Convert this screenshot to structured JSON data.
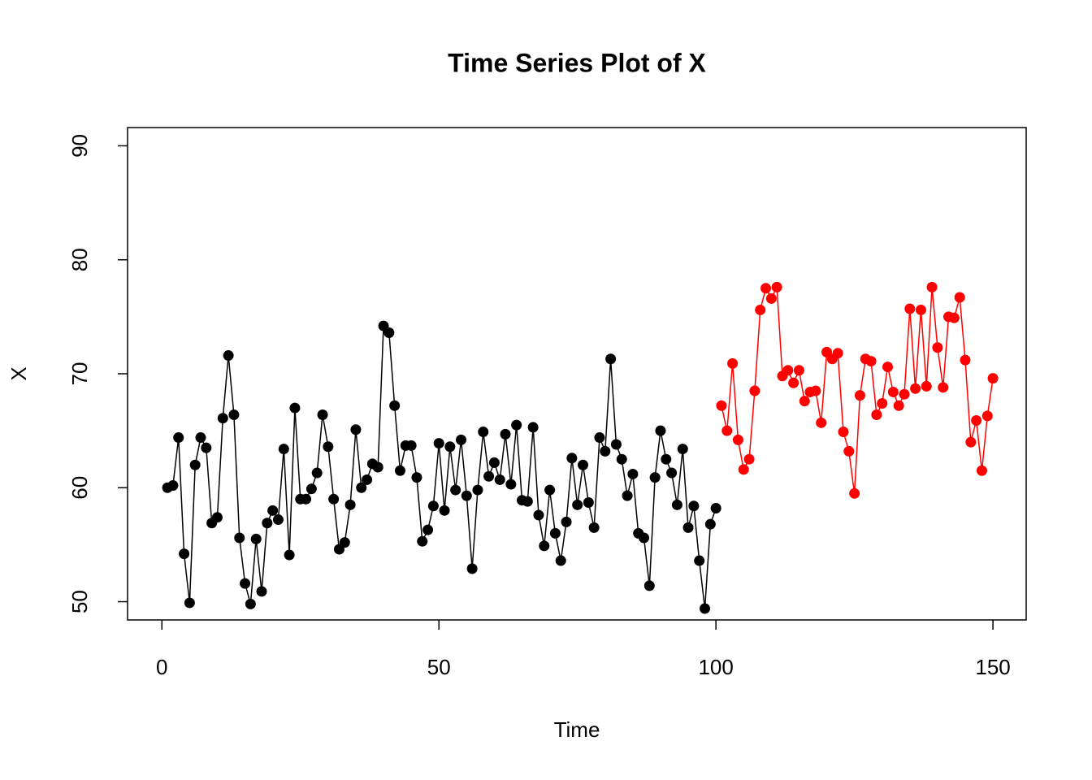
{
  "chart_data": {
    "type": "line",
    "title": "Time Series Plot of X",
    "x_label": "Time",
    "y_label": "X",
    "xlim": [
      -6.2,
      156
    ],
    "ylim": [
      48.4,
      91.6
    ],
    "xticks": [
      0,
      50,
      100,
      150
    ],
    "yticks": [
      50,
      60,
      70,
      80,
      90
    ],
    "series": [
      {
        "color": "#000000",
        "x": [
          1,
          2,
          3,
          4,
          5,
          6,
          7,
          8,
          9,
          10,
          11,
          12,
          13,
          14,
          15,
          16,
          17,
          18,
          19,
          20,
          21,
          22,
          23,
          24,
          25,
          26,
          27,
          28,
          29,
          30,
          31,
          32,
          33,
          34,
          35,
          36,
          37,
          38,
          39,
          40,
          41,
          42,
          43,
          44,
          45,
          46,
          47,
          48,
          49,
          50,
          51,
          52,
          53,
          54,
          55,
          56,
          57,
          58,
          59,
          60,
          61,
          62,
          63,
          64,
          65,
          66,
          67,
          68,
          69,
          70,
          71,
          72,
          73,
          74,
          75,
          76,
          77,
          78,
          79,
          80,
          81,
          82,
          83,
          84,
          85,
          86,
          87,
          88,
          89,
          90,
          91,
          92,
          93,
          94,
          95,
          96,
          97,
          98,
          99,
          100
        ],
        "values": [
          60.0,
          60.2,
          64.4,
          54.2,
          49.9,
          62.0,
          64.4,
          63.5,
          56.9,
          57.4,
          66.1,
          71.6,
          66.4,
          55.6,
          51.6,
          49.8,
          55.5,
          50.9,
          56.9,
          58.0,
          57.2,
          63.4,
          54.1,
          67.0,
          59.0,
          59.0,
          59.9,
          61.3,
          66.4,
          63.6,
          59.0,
          54.6,
          55.2,
          58.5,
          65.1,
          60.0,
          60.7,
          62.1,
          61.8,
          74.2,
          73.6,
          67.2,
          61.5,
          63.7,
          63.7,
          60.9,
          55.3,
          56.3,
          58.4,
          63.9,
          58.0,
          63.6,
          59.8,
          64.2,
          59.3,
          52.9,
          59.8,
          64.9,
          61.0,
          62.2,
          60.7,
          64.7,
          60.3,
          65.5,
          58.9,
          58.8,
          65.3,
          57.6,
          54.9,
          59.8,
          56.0,
          53.6,
          57.0,
          62.6,
          58.5,
          62.0,
          58.7,
          56.5,
          64.4,
          63.2,
          71.3,
          63.8,
          62.5,
          59.3,
          61.2,
          56.0,
          55.6,
          51.4,
          60.9,
          65.0,
          62.5,
          61.3,
          58.5,
          63.4,
          56.5,
          58.4,
          53.6,
          49.4,
          56.8,
          58.2
        ]
      },
      {
        "color": "#ff0000",
        "x": [
          101,
          102,
          103,
          104,
          105,
          106,
          107,
          108,
          109,
          110,
          111,
          112,
          113,
          114,
          115,
          116,
          117,
          118,
          119,
          120,
          121,
          122,
          123,
          124,
          125,
          126,
          127,
          128,
          129,
          130,
          131,
          132,
          133,
          134,
          135,
          136,
          137,
          138,
          139,
          140,
          141,
          142,
          143,
          144,
          145,
          146,
          147,
          148,
          149,
          150
        ],
        "values": [
          67.2,
          65.0,
          70.9,
          64.2,
          61.6,
          62.5,
          68.5,
          75.6,
          77.5,
          76.6,
          77.6,
          69.8,
          70.3,
          69.2,
          70.3,
          67.6,
          68.4,
          68.5,
          65.7,
          71.9,
          71.3,
          71.8,
          64.9,
          63.2,
          59.5,
          68.1,
          71.3,
          71.1,
          66.4,
          67.4,
          70.6,
          68.4,
          67.2,
          68.2,
          75.7,
          68.7,
          75.6,
          68.9,
          77.6,
          72.3,
          68.8,
          75.0,
          74.9,
          76.7,
          71.2,
          64.0,
          65.9,
          61.5,
          66.3,
          69.6
        ]
      }
    ]
  }
}
